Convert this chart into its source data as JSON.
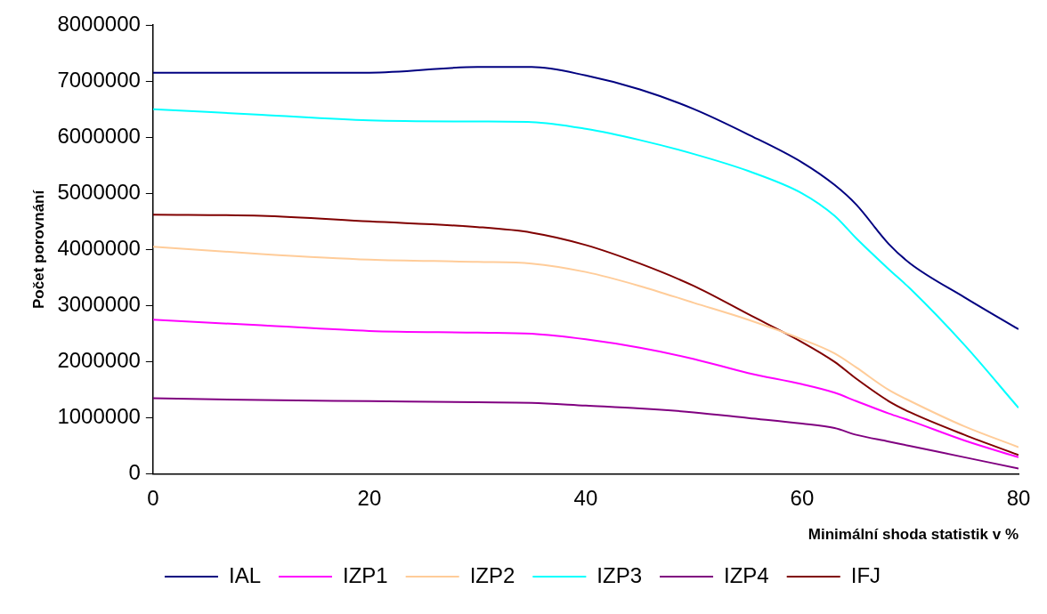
{
  "chart_data": {
    "type": "line",
    "xlabel": "Minimální shoda statistik v %",
    "ylabel": "Počet porovnání",
    "xlim": [
      0,
      80
    ],
    "xticks": [
      0,
      20,
      40,
      60,
      80
    ],
    "ylim": [
      0,
      8000000
    ],
    "yticks": [
      0,
      1000000,
      2000000,
      3000000,
      4000000,
      5000000,
      6000000,
      7000000,
      8000000
    ],
    "grid": false,
    "legend": "bottom",
    "marker": "none",
    "line_style": "solid",
    "x": [
      0,
      10,
      20,
      30,
      35,
      40,
      45,
      50,
      55,
      60,
      63,
      65,
      68,
      70,
      75,
      80
    ],
    "series": [
      {
        "name": "IAL",
        "color": "#000080",
        "values": [
          7150000,
          7150000,
          7150000,
          7250000,
          7250000,
          7100000,
          6850000,
          6500000,
          6050000,
          5550000,
          5150000,
          4800000,
          4100000,
          3750000,
          3150000,
          2580000
        ]
      },
      {
        "name": "IZP1",
        "color": "#ff00ff",
        "values": [
          2750000,
          2650000,
          2550000,
          2520000,
          2500000,
          2400000,
          2250000,
          2050000,
          1800000,
          1600000,
          1450000,
          1300000,
          1080000,
          950000,
          600000,
          300000
        ]
      },
      {
        "name": "IZP2",
        "color": "#ffcc99",
        "values": [
          4050000,
          3920000,
          3820000,
          3780000,
          3750000,
          3600000,
          3350000,
          3050000,
          2750000,
          2400000,
          2150000,
          1900000,
          1500000,
          1300000,
          850000,
          480000
        ]
      },
      {
        "name": "IZP3",
        "color": "#00ffff",
        "values": [
          6500000,
          6400000,
          6300000,
          6280000,
          6270000,
          6150000,
          5950000,
          5700000,
          5400000,
          5000000,
          4600000,
          4200000,
          3650000,
          3300000,
          2300000,
          1180000
        ]
      },
      {
        "name": "IZP4",
        "color": "#800080",
        "values": [
          1350000,
          1320000,
          1300000,
          1280000,
          1270000,
          1220000,
          1170000,
          1100000,
          1000000,
          900000,
          820000,
          700000,
          580000,
          500000,
          300000,
          100000
        ]
      },
      {
        "name": "IFJ",
        "color": "#800000",
        "values": [
          4620000,
          4600000,
          4500000,
          4400000,
          4300000,
          4080000,
          3750000,
          3350000,
          2850000,
          2350000,
          2000000,
          1700000,
          1300000,
          1100000,
          700000,
          340000
        ]
      }
    ]
  }
}
